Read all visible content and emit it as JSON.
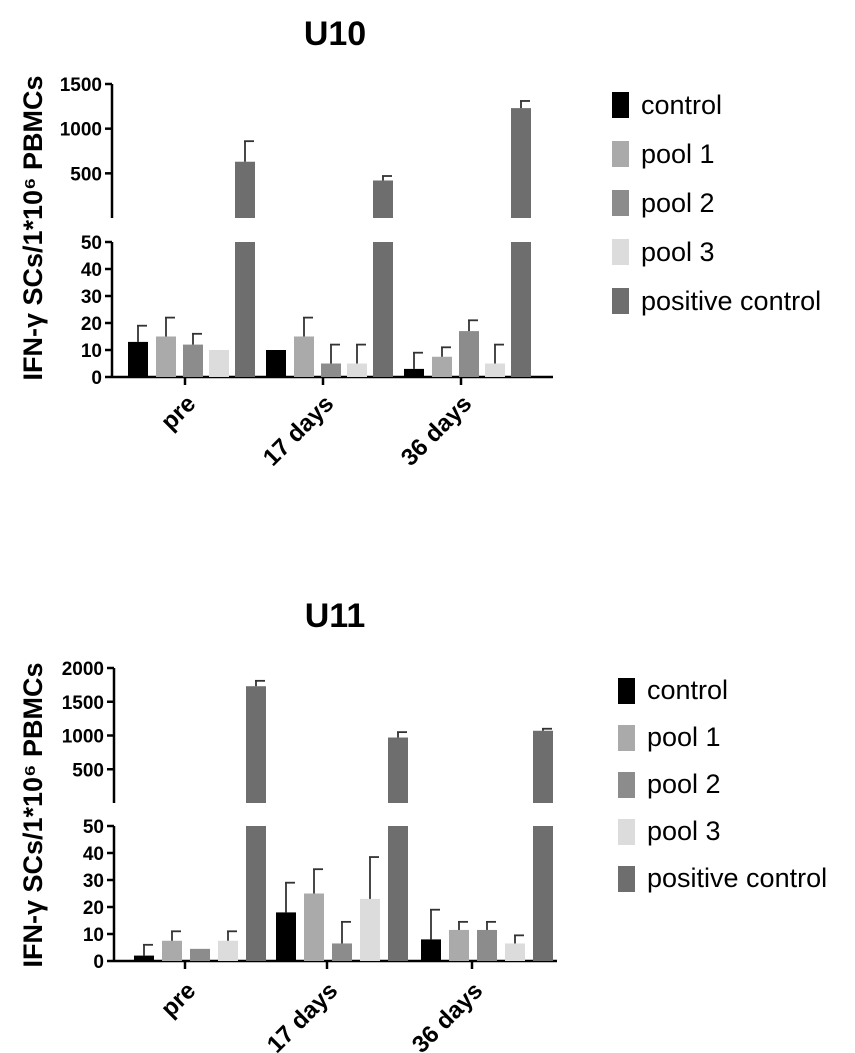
{
  "chart_data": [
    {
      "type": "bar",
      "title": "U10",
      "ylabel": "IFN-γ SCs/1*10⁶ PBMCs",
      "categories": [
        "pre",
        "17 days",
        "36 days"
      ],
      "axis_break": true,
      "lower_ylim": [
        0,
        50
      ],
      "lower_ticks": [
        0,
        10,
        20,
        30,
        40,
        50
      ],
      "upper_ylim": [
        0,
        1500
      ],
      "upper_ticks": [
        500,
        1000,
        1500
      ],
      "legend_position": "right",
      "series": [
        {
          "name": "control",
          "color": "#000000",
          "values": [
            13,
            10,
            3
          ],
          "errors": [
            6,
            0,
            6
          ]
        },
        {
          "name": "pool 1",
          "color": "#aaaaaa",
          "values": [
            15,
            15,
            7.5
          ],
          "errors": [
            7,
            7,
            3.5
          ]
        },
        {
          "name": "pool 2",
          "color": "#8c8c8c",
          "values": [
            12,
            5,
            17
          ],
          "errors": [
            4,
            7,
            4
          ]
        },
        {
          "name": "pool 3",
          "color": "#dcdcdc",
          "values": [
            10,
            5,
            5
          ],
          "errors": [
            0,
            7,
            7
          ]
        },
        {
          "name": "positive control",
          "color": "#6e6e6e",
          "values": [
            630,
            420,
            1230
          ],
          "errors": [
            230,
            50,
            80
          ]
        }
      ]
    },
    {
      "type": "bar",
      "title": "U11",
      "ylabel": "IFN-γ SCs/1*10⁶ PBMCs",
      "categories": [
        "pre",
        "17 days",
        "36 days"
      ],
      "axis_break": true,
      "lower_ylim": [
        0,
        50
      ],
      "lower_ticks": [
        0,
        10,
        20,
        30,
        40,
        50
      ],
      "upper_ylim": [
        0,
        2000
      ],
      "upper_ticks": [
        500,
        1000,
        1500,
        2000
      ],
      "legend_position": "right",
      "series": [
        {
          "name": "control",
          "color": "#000000",
          "values": [
            2,
            18,
            8
          ],
          "errors": [
            4,
            11,
            11
          ]
        },
        {
          "name": "pool 1",
          "color": "#aaaaaa",
          "values": [
            7.5,
            25,
            11.5
          ],
          "errors": [
            3.5,
            9,
            3
          ]
        },
        {
          "name": "pool 2",
          "color": "#8c8c8c",
          "values": [
            4.5,
            6.5,
            11.5
          ],
          "errors": [
            0,
            8,
            3
          ]
        },
        {
          "name": "pool 3",
          "color": "#dcdcdc",
          "values": [
            7.5,
            23,
            6.5
          ],
          "errors": [
            3.5,
            15.5,
            3
          ]
        },
        {
          "name": "positive control",
          "color": "#6e6e6e",
          "values": [
            1730,
            970,
            1070
          ],
          "errors": [
            80,
            80,
            30
          ]
        }
      ]
    }
  ]
}
